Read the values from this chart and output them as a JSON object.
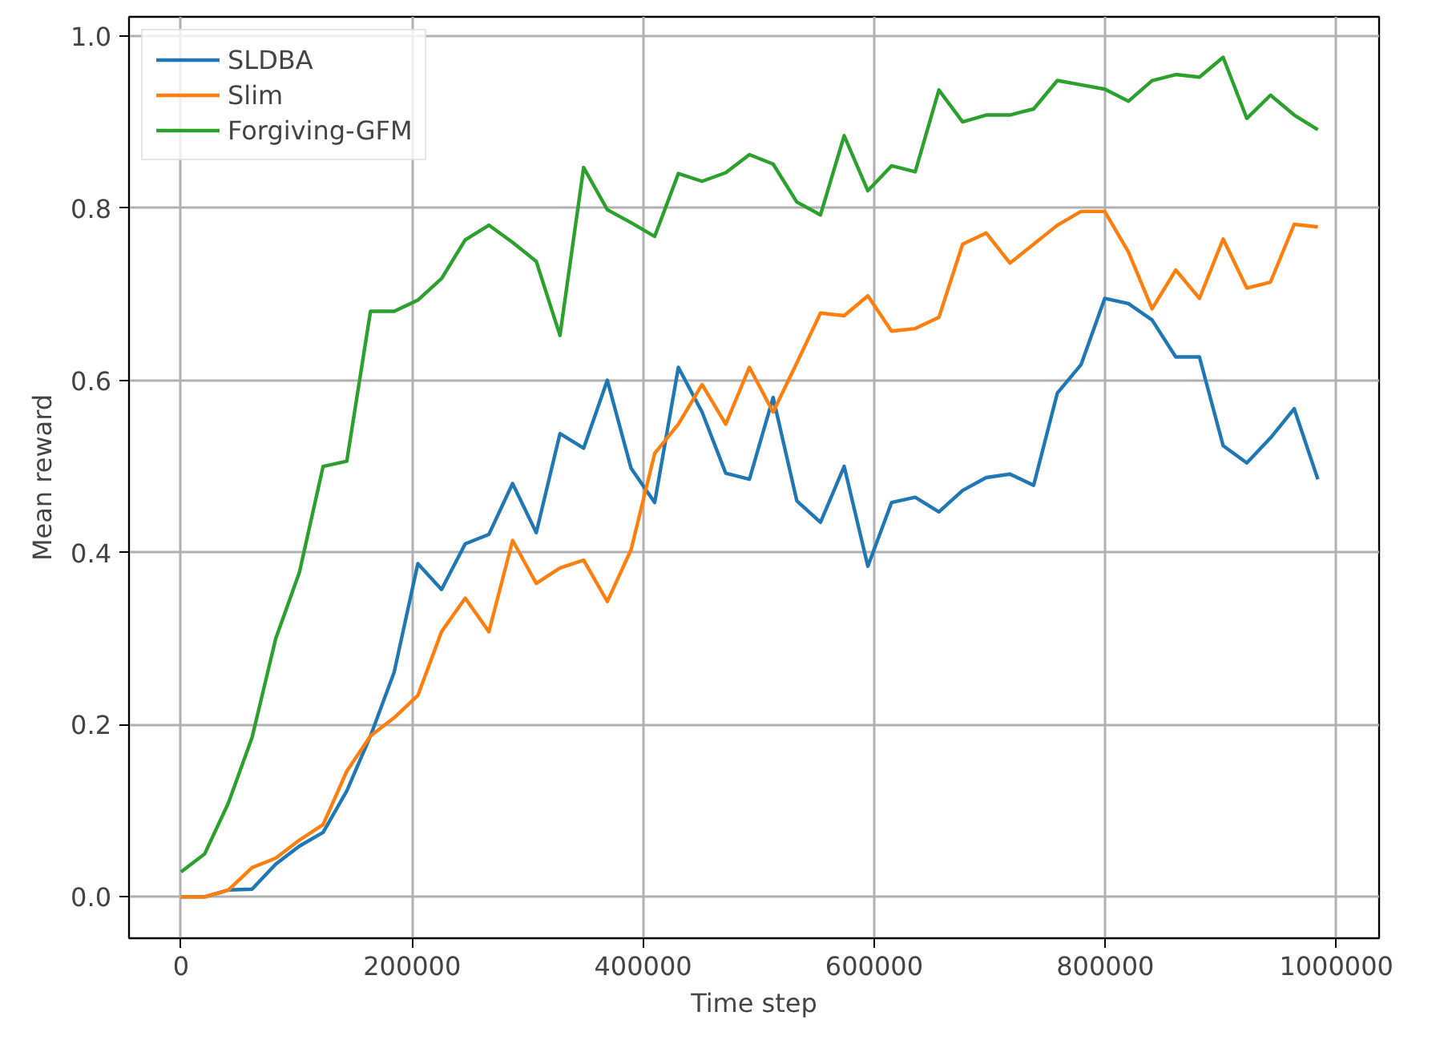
{
  "chart_data": {
    "type": "line",
    "xlabel": "Time step",
    "ylabel": "Mean reward",
    "x": [
      0,
      20500,
      41000,
      61500,
      82000,
      102500,
      123000,
      143500,
      164000,
      184500,
      205000,
      225500,
      246000,
      266500,
      287000,
      307500,
      328000,
      348500,
      369000,
      389500,
      410000,
      430500,
      451000,
      471500,
      492000,
      512500,
      533000,
      553500,
      574000,
      594500,
      615000,
      635500,
      656000,
      676500,
      697000,
      717500,
      738000,
      758500,
      779000,
      799500,
      820000,
      840500,
      861000,
      881500,
      902000,
      922500,
      943000,
      963500,
      984000
    ],
    "series": [
      {
        "name": "SLDBA",
        "color": "#1f77b4",
        "values": [
          0,
          0,
          0.008,
          0.009,
          0.038,
          0.059,
          0.075,
          0.123,
          0.187,
          0.261,
          0.387,
          0.357,
          0.41,
          0.421,
          0.48,
          0.423,
          0.538,
          0.521,
          0.6,
          0.498,
          0.458,
          0.615,
          0.563,
          0.492,
          0.485,
          0.58,
          0.46,
          0.435,
          0.5,
          0.384,
          0.458,
          0.464,
          0.447,
          0.472,
          0.487,
          0.491,
          0.478,
          0.585,
          0.618,
          0.695,
          0.689,
          0.67,
          0.627,
          0.627,
          0.524,
          0.504,
          0.533,
          0.567,
          0.485
        ]
      },
      {
        "name": "Slim",
        "color": "#ff7f0e",
        "values": [
          0,
          0,
          0.008,
          0.034,
          0.045,
          0.066,
          0.084,
          0.146,
          0.187,
          0.208,
          0.234,
          0.308,
          0.347,
          0.308,
          0.414,
          0.364,
          0.382,
          0.391,
          0.343,
          0.403,
          0.515,
          0.549,
          0.595,
          0.549,
          0.615,
          0.563,
          0.62,
          0.678,
          0.675,
          0.698,
          0.657,
          0.66,
          0.673,
          0.758,
          0.771,
          0.736,
          0.758,
          0.78,
          0.796,
          0.796,
          0.749,
          0.683,
          0.728,
          0.695,
          0.764,
          0.707,
          0.714,
          0.781,
          0.778
        ]
      },
      {
        "name": "Forgiving-GFM",
        "color": "#2ca02c",
        "values": [
          0.029,
          0.05,
          0.109,
          0.185,
          0.3,
          0.377,
          0.5,
          0.506,
          0.68,
          0.68,
          0.693,
          0.718,
          0.763,
          0.78,
          0.76,
          0.738,
          0.652,
          0.847,
          0.798,
          0.783,
          0.767,
          0.84,
          0.831,
          0.841,
          0.862,
          0.851,
          0.807,
          0.792,
          0.884,
          0.82,
          0.849,
          0.842,
          0.937,
          0.9,
          0.908,
          0.908,
          0.915,
          0.948,
          0.943,
          0.938,
          0.924,
          0.948,
          0.955,
          0.952,
          0.975,
          0.904,
          0.931,
          0.908,
          0.891
        ]
      }
    ],
    "xlim": [
      -45000,
      1037000
    ],
    "ylim": [
      -0.048,
      1.022
    ],
    "xticks": [
      0,
      200000,
      400000,
      600000,
      800000,
      1000000
    ],
    "yticks": [
      {
        "value": 0,
        "label": "0.0"
      },
      {
        "value": 0.2,
        "label": "0.2"
      },
      {
        "value": 0.4,
        "label": "0.4"
      },
      {
        "value": 0.6,
        "label": "0.6"
      },
      {
        "value": 0.8,
        "label": "0.8"
      },
      {
        "value": 1.0,
        "label": "1.0"
      }
    ],
    "grid": true,
    "legend": "top left",
    "marker": "none",
    "line_style": "solid"
  }
}
